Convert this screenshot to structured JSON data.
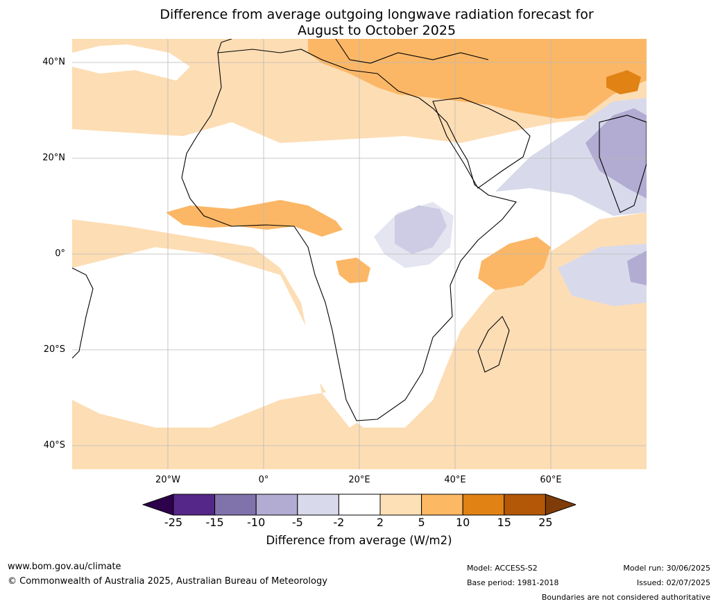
{
  "title": {
    "line1": "Difference from average outgoing longwave radiation forecast for",
    "line2": "August to October 2025"
  },
  "map": {
    "lat_labels": [
      "40°N",
      "20°N",
      "0°",
      "20°S",
      "40°S"
    ],
    "lon_labels": [
      "20°W",
      "0°",
      "20°E",
      "40°E",
      "60°E"
    ],
    "colors": {
      "ocean_positive": "#fdddb4",
      "medium_positive": "#fbb766",
      "strong_positive": "#e08214",
      "weak_negative": "#d8daeb",
      "medium_negative": "#b2abd2",
      "strong_negative": "#8073ac",
      "neutral": "#ffffff"
    }
  },
  "colorbar": {
    "ticks": [
      "-25",
      "-15",
      "-10",
      "-5",
      "-2",
      "2",
      "5",
      "10",
      "15",
      "25"
    ],
    "colors": [
      "#2d004b",
      "#542788",
      "#8073ac",
      "#b2abd2",
      "#d8daeb",
      "#ffffff",
      "#fee0b6",
      "#fdb863",
      "#e08214",
      "#b35806",
      "#7f3b08"
    ],
    "label": "Difference from average (W/m2)"
  },
  "footer": {
    "website": "www.bom.gov.au/climate",
    "copyright": "© Commonwealth of Australia 2025, Australian Bureau of Meteorology",
    "model": "Model: ACCESS-S2",
    "base_period": "Base period: 1981-2018",
    "model_run": "Model run: 30/06/2025",
    "issued": "Issued: 02/07/2025",
    "disclaimer": "Boundaries are not considered authoritative"
  }
}
